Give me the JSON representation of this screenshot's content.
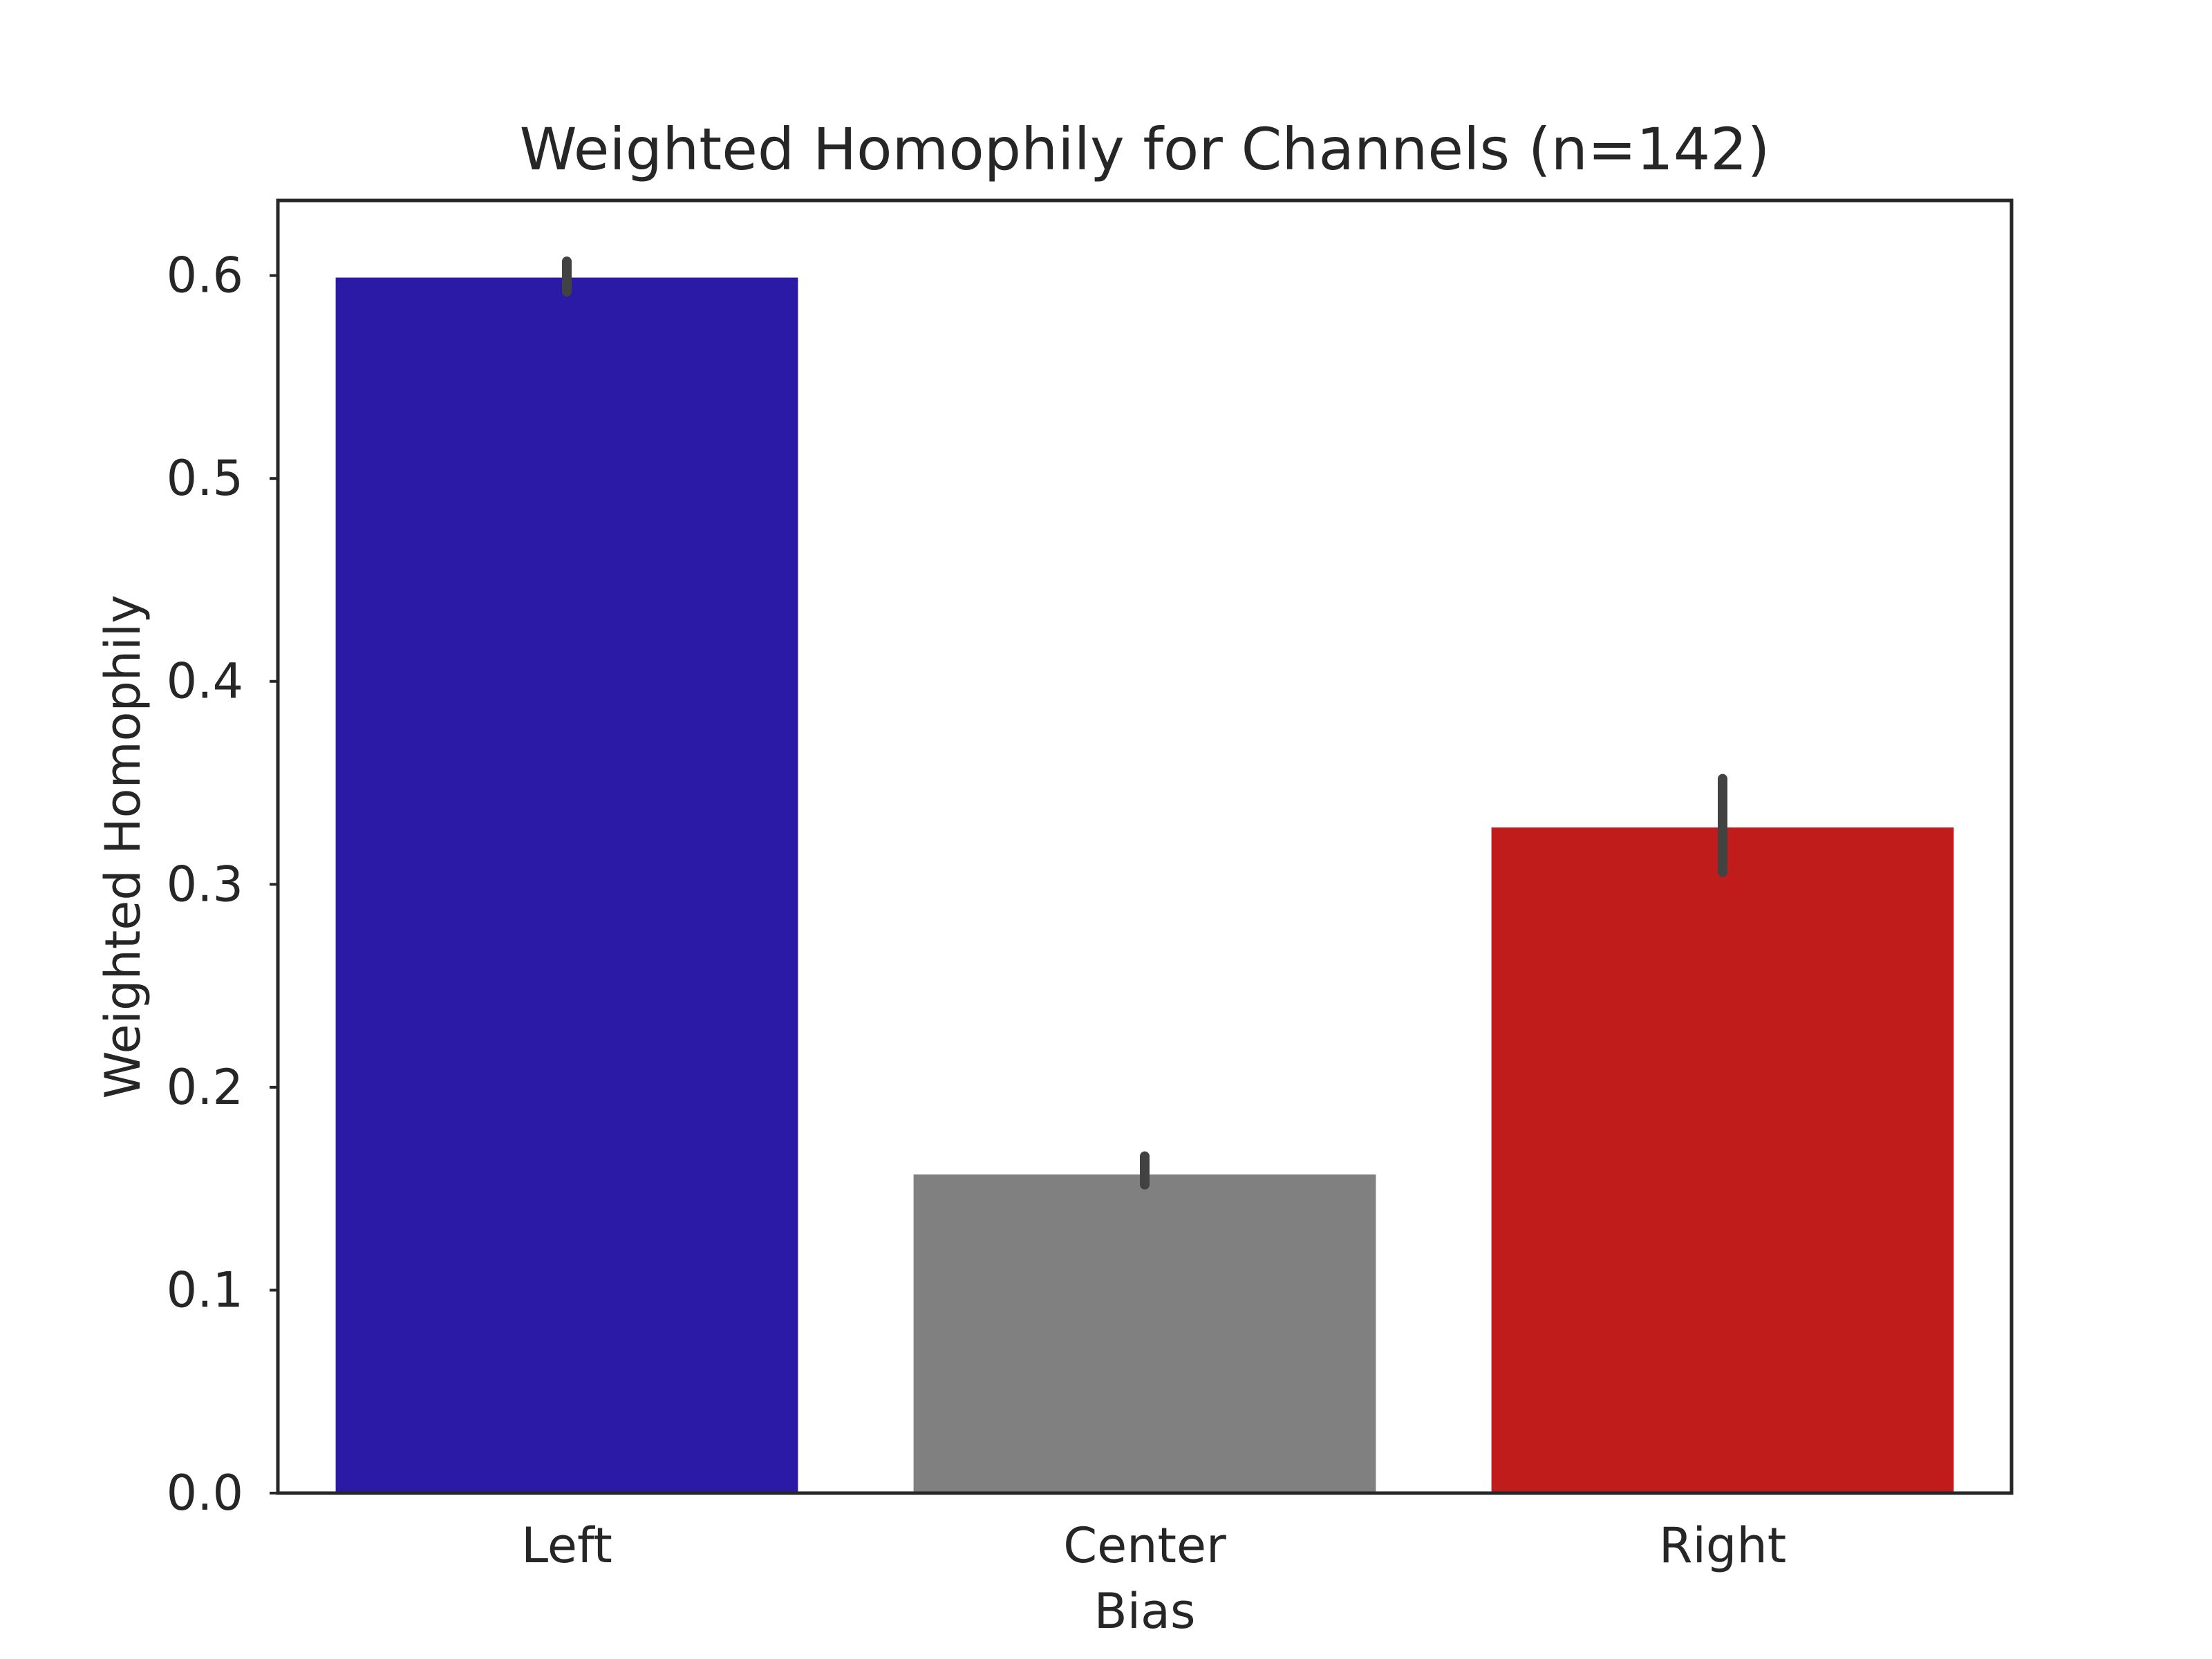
{
  "chart_data": {
    "type": "bar",
    "title": "Weighted Homophily for Channels (n=142)",
    "xlabel": "Bias",
    "ylabel": "Weighted Homophily",
    "categories": [
      "Left",
      "Center",
      "Right"
    ],
    "values": [
      0.599,
      0.157,
      0.328
    ],
    "error_bars": [
      {
        "low": 0.592,
        "high": 0.607
      },
      {
        "low": 0.152,
        "high": 0.166
      },
      {
        "low": 0.306,
        "high": 0.352
      }
    ],
    "colors": [
      "#2A1AA6",
      "#808080",
      "#C01C1C"
    ],
    "ylim": [
      0,
      0.637
    ],
    "yticks": [
      "0.0",
      "0.1",
      "0.2",
      "0.3",
      "0.4",
      "0.5",
      "0.6"
    ],
    "grid": false,
    "legend": "none"
  }
}
